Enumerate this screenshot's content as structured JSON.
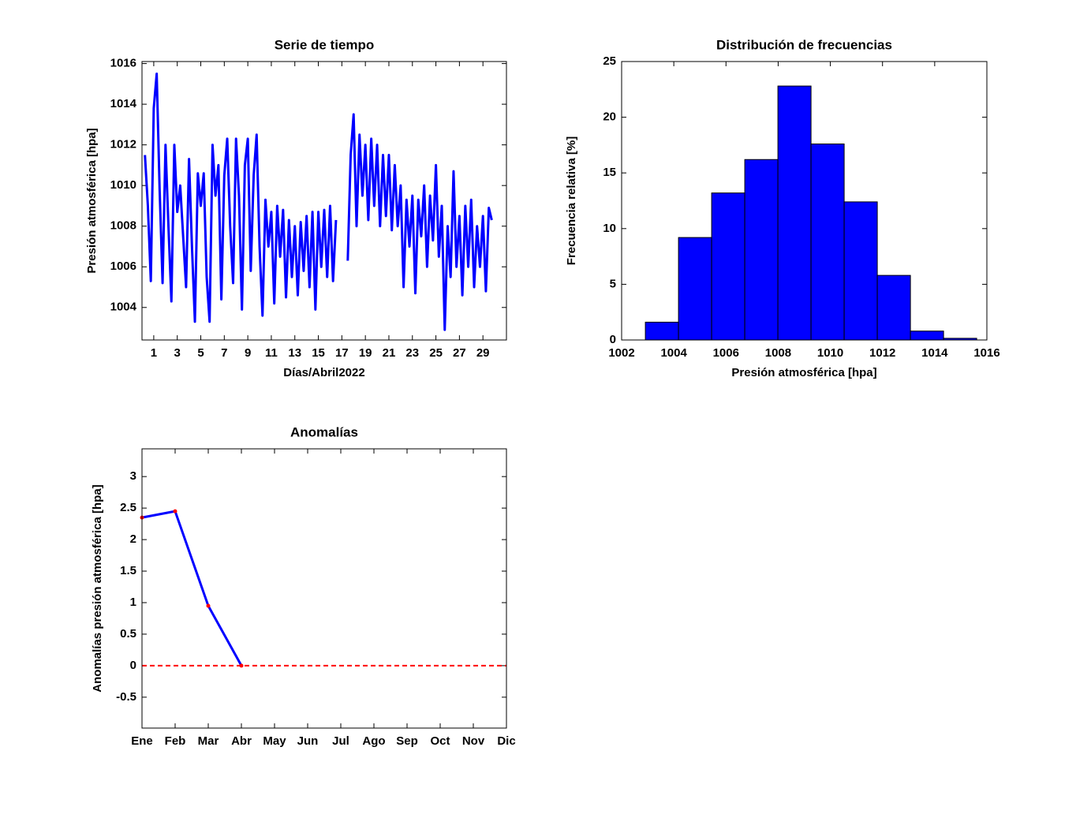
{
  "chart_data": [
    {
      "type": "line",
      "title": "Serie de tiempo",
      "x_label": "Días/Abril2022",
      "y_label": "Presión atmosférica [hpa]",
      "xlim": [
        0,
        31
      ],
      "xticks": [
        1,
        3,
        5,
        7,
        9,
        11,
        13,
        15,
        17,
        19,
        21,
        23,
        25,
        27,
        29
      ],
      "ylim": [
        1002.4,
        1016.1
      ],
      "yticks": [
        1004,
        1006,
        1008,
        1010,
        1012,
        1014,
        1016
      ],
      "x": [
        0.25,
        0.5,
        0.75,
        1,
        1.25,
        1.5,
        1.75,
        2,
        2.25,
        2.5,
        2.75,
        3,
        3.25,
        3.5,
        3.75,
        4,
        4.25,
        4.5,
        4.75,
        5,
        5.25,
        5.5,
        5.75,
        6,
        6.25,
        6.5,
        6.75,
        7,
        7.25,
        7.5,
        7.75,
        8,
        8.25,
        8.5,
        8.75,
        9,
        9.25,
        9.5,
        9.75,
        10,
        10.25,
        10.5,
        10.75,
        11,
        11.25,
        11.5,
        11.75,
        12,
        12.25,
        12.5,
        12.75,
        13,
        13.25,
        13.5,
        13.75,
        14,
        14.25,
        14.5,
        14.75,
        15,
        15.25,
        15.5,
        15.75,
        16,
        16.25,
        16.5,
        16.75,
        17,
        17.25,
        17.5,
        17.75,
        18,
        18.25,
        18.5,
        18.75,
        19,
        19.25,
        19.5,
        19.75,
        20,
        20.25,
        20.5,
        20.75,
        21,
        21.25,
        21.5,
        21.75,
        22,
        22.25,
        22.5,
        22.75,
        23,
        23.25,
        23.5,
        23.75,
        24,
        24.25,
        24.5,
        24.75,
        25,
        25.25,
        25.5,
        25.75,
        26,
        26.25,
        26.5,
        26.75,
        27,
        27.25,
        27.5,
        27.75,
        28,
        28.25,
        28.5,
        28.75,
        29,
        29.25,
        29.5,
        29.75
      ],
      "series": [
        {
          "color": "#0000ff",
          "values": [
            1011.5,
            1009.0,
            1005.3,
            1013.8,
            1015.5,
            1009.8,
            1005.2,
            1012.0,
            1008.0,
            1004.3,
            1012.0,
            1008.7,
            1010.0,
            1007.5,
            1005.0,
            1011.3,
            1007.0,
            1003.3,
            1010.6,
            1009.0,
            1010.6,
            1005.5,
            1003.3,
            1012.0,
            1009.5,
            1011.0,
            1004.4,
            1010.5,
            1012.3,
            1008.0,
            1005.2,
            1012.3,
            1009.5,
            1003.9,
            1011.0,
            1012.3,
            1005.8,
            1010.5,
            1012.5,
            1007.0,
            1003.6,
            1009.3,
            1007.0,
            1008.7,
            1004.2,
            1009.0,
            1006.5,
            1008.8,
            1004.5,
            1008.3,
            1005.5,
            1008.0,
            1004.6,
            1008.2,
            1005.8,
            1008.5,
            1005.0,
            1008.7,
            1003.9,
            1008.7,
            1006.0,
            1008.8,
            1005.5,
            1009.0,
            1005.3,
            1008.3,
            null,
            null,
            null,
            1006.3,
            1011.5,
            1013.5,
            1008.0,
            1012.5,
            1009.5,
            1012.0,
            1008.3,
            1012.3,
            1009.0,
            1012.0,
            1008.0,
            1011.5,
            1008.5,
            1011.5,
            1007.8,
            1011.0,
            1008.0,
            1010.0,
            1005.0,
            1009.3,
            1007.0,
            1009.5,
            1004.7,
            1009.3,
            1007.5,
            1010.0,
            1006.0,
            1009.5,
            1007.3,
            1011.0,
            1006.5,
            1009.0,
            1002.9,
            1008.0,
            1005.5,
            1010.7,
            1006.0,
            1008.5,
            1004.6,
            1009.0,
            1006.0,
            1009.3,
            1005.0,
            1008.0,
            1006.0,
            1008.5,
            1004.8,
            1008.9,
            1008.3
          ]
        }
      ]
    },
    {
      "type": "histogram",
      "title": "Distribución de frecuencias",
      "x_label": "Presión atmosférica [hpa]",
      "y_label": "Frecuencia relativa [%]",
      "xlim": [
        1002,
        1016
      ],
      "xticks": [
        1002,
        1004,
        1006,
        1008,
        1010,
        1012,
        1014,
        1016
      ],
      "ylim": [
        0,
        25
      ],
      "yticks": [
        0,
        5,
        10,
        15,
        20,
        25
      ],
      "color": "#0000ff",
      "bins": [
        1002.91,
        1004.18,
        1005.45,
        1006.72,
        1007.99,
        1009.26,
        1010.53,
        1011.8,
        1013.07,
        1014.34,
        1015.61
      ],
      "values": [
        1.6,
        9.2,
        13.2,
        16.2,
        22.8,
        17.6,
        12.4,
        5.8,
        0.8,
        0.15
      ]
    },
    {
      "type": "line",
      "title": "Anomalías",
      "y_label": "Anomalías presión atmosférica [hpa]",
      "categories": [
        "Ene",
        "Feb",
        "Mar",
        "Abr",
        "May",
        "Jun",
        "Jul",
        "Ago",
        "Sep",
        "Oct",
        "Nov",
        "Dic"
      ],
      "ylim": [
        -0.99,
        3.44
      ],
      "yticks": [
        -0.5,
        0,
        0.5,
        1,
        1.5,
        2,
        2.5,
        3
      ],
      "series": [
        {
          "color": "#0000ff",
          "marker_color": "#ff0000",
          "values": [
            2.35,
            2.45,
            0.95,
            0,
            null,
            null,
            null,
            null,
            null,
            null,
            null,
            null
          ]
        }
      ],
      "reference_line": {
        "value": 0,
        "color": "#ff0000",
        "style": "dashed"
      }
    }
  ]
}
